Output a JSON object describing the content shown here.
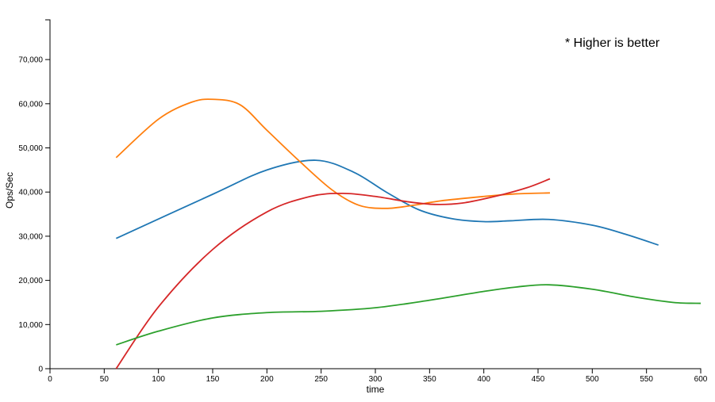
{
  "chart_data": {
    "type": "line",
    "xlabel": "time",
    "ylabel": "Ops/Sec",
    "annotation": "* Higher is better",
    "xlim": [
      0,
      600
    ],
    "ylim": [
      0,
      79000
    ],
    "x_ticks": [
      0,
      50,
      100,
      150,
      200,
      250,
      300,
      350,
      400,
      450,
      500,
      550,
      600
    ],
    "y_ticks": [
      0,
      10000,
      20000,
      30000,
      40000,
      50000,
      60000,
      70000
    ],
    "x_tick_labels": [
      "0",
      "50",
      "100",
      "150",
      "200",
      "250",
      "300",
      "350",
      "400",
      "450",
      "500",
      "550",
      "600"
    ],
    "y_tick_labels": [
      "0",
      "10,000",
      "20,000",
      "30,000",
      "40,000",
      "50,000",
      "60,000",
      "70,000"
    ],
    "grid": false,
    "series": [
      {
        "color": "#1f77b4",
        "points": [
          [
            61,
            29500
          ],
          [
            150,
            39500
          ],
          [
            200,
            45000
          ],
          [
            245,
            47200
          ],
          [
            280,
            44500
          ],
          [
            310,
            40000
          ],
          [
            340,
            36000
          ],
          [
            370,
            34000
          ],
          [
            400,
            33300
          ],
          [
            425,
            33500
          ],
          [
            460,
            33800
          ],
          [
            500,
            32500
          ],
          [
            530,
            30500
          ],
          [
            561,
            28000
          ]
        ]
      },
      {
        "color": "#ff7f0e",
        "points": [
          [
            61,
            47800
          ],
          [
            100,
            56500
          ],
          [
            130,
            60300
          ],
          [
            150,
            61000
          ],
          [
            175,
            59800
          ],
          [
            200,
            54000
          ],
          [
            230,
            47000
          ],
          [
            260,
            40500
          ],
          [
            285,
            37000
          ],
          [
            310,
            36300
          ],
          [
            335,
            37000
          ],
          [
            360,
            38000
          ],
          [
            400,
            39000
          ],
          [
            430,
            39600
          ],
          [
            461,
            39800
          ]
        ]
      },
      {
        "color": "#d62728",
        "points": [
          [
            61,
            0
          ],
          [
            100,
            14000
          ],
          [
            150,
            27000
          ],
          [
            200,
            35500
          ],
          [
            240,
            39000
          ],
          [
            270,
            39700
          ],
          [
            300,
            39000
          ],
          [
            330,
            37800
          ],
          [
            355,
            37200
          ],
          [
            380,
            37500
          ],
          [
            410,
            39000
          ],
          [
            440,
            41000
          ],
          [
            461,
            43000
          ]
        ]
      },
      {
        "color": "#2ca02c",
        "points": [
          [
            61,
            5400
          ],
          [
            100,
            8500
          ],
          [
            150,
            11500
          ],
          [
            200,
            12700
          ],
          [
            250,
            13000
          ],
          [
            300,
            13800
          ],
          [
            350,
            15500
          ],
          [
            400,
            17500
          ],
          [
            430,
            18500
          ],
          [
            460,
            19000
          ],
          [
            500,
            18000
          ],
          [
            540,
            16200
          ],
          [
            575,
            15000
          ],
          [
            600,
            14800
          ]
        ]
      }
    ]
  }
}
